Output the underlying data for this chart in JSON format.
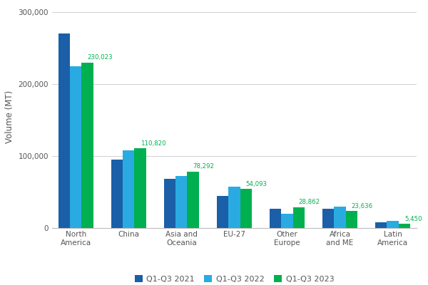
{
  "categories": [
    "North\nAmerica",
    "China",
    "Asia and\nOceania",
    "EU-27",
    "Other\nEurope",
    "Africa\nand ME",
    "Latin\nAmerica"
  ],
  "series": {
    "Q1-Q3 2021": [
      270000,
      95000,
      68000,
      45000,
      27000,
      27000,
      8000
    ],
    "Q1-Q3 2022": [
      225000,
      108000,
      72000,
      57000,
      20000,
      30000,
      10000
    ],
    "Q1-Q3 2023": [
      230023,
      110820,
      78292,
      54093,
      28862,
      23636,
      5450
    ]
  },
  "series_colors": {
    "Q1-Q3 2021": "#1a5fa8",
    "Q1-Q3 2022": "#29abe2",
    "Q1-Q3 2023": "#00b050"
  },
  "series_order": [
    "Q1-Q3 2021",
    "Q1-Q3 2022",
    "Q1-Q3 2023"
  ],
  "annotation_values": [
    230023,
    110820,
    78292,
    54093,
    28862,
    23636,
    5450
  ],
  "annotation_color": "#00b050",
  "ylabel": "Volume (MT)",
  "ylim": [
    0,
    310000
  ],
  "yticks": [
    0,
    100000,
    200000,
    300000
  ],
  "ytick_labels": [
    "0",
    "100,000",
    "200,000",
    "300,000"
  ],
  "background_color": "#ffffff",
  "grid_color": "#d0d0d0",
  "bar_width": 0.22,
  "figsize": [
    6.0,
    4.0
  ],
  "dpi": 100
}
